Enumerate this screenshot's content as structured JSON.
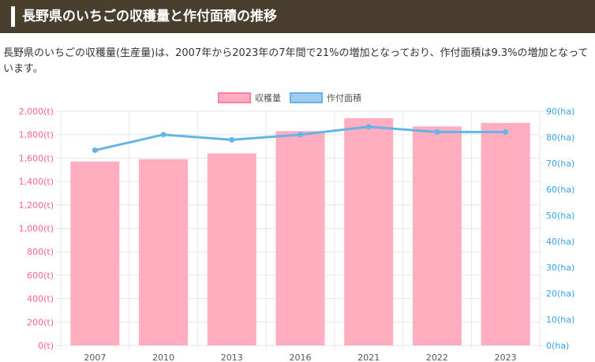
{
  "header": {
    "title": "長野県のいちごの収穫量と作付面積の推移"
  },
  "description": "長野県のいちごの収穫量(生産量)は、2007年から2023年の7年間で21%の増加となっており、作付面積は9.3%の増加となっています。",
  "chart_data": {
    "type": "bar",
    "categories": [
      "2007",
      "2010",
      "2013",
      "2016",
      "2021",
      "2022",
      "2023"
    ],
    "series": [
      {
        "name": "収穫量",
        "type": "bar",
        "axis": "left",
        "color": "#ffadbf",
        "values": [
          1570,
          1590,
          1640,
          1830,
          1940,
          1870,
          1900
        ]
      },
      {
        "name": "作付面積",
        "type": "line",
        "axis": "right",
        "color": "#63b4e8",
        "values": [
          75,
          81,
          79,
          81,
          84,
          82,
          82
        ]
      }
    ],
    "y_left": {
      "min": 0,
      "max": 2000,
      "ticks": [
        "0(t)",
        "200(t)",
        "400(t)",
        "600(t)",
        "800(t)",
        "1,000(t)",
        "1,200(t)",
        "1,400(t)",
        "1,600(t)",
        "1,800(t)",
        "2,000(t)"
      ],
      "color": "#ff6384"
    },
    "y_right": {
      "min": 0,
      "max": 90,
      "ticks": [
        "0(ha)",
        "10(ha)",
        "20(ha)",
        "30(ha)",
        "40(ha)",
        "50(ha)",
        "60(ha)",
        "70(ha)",
        "80(ha)",
        "90(ha)"
      ],
      "color": "#36a2eb"
    },
    "legend_position": "top",
    "grid": true
  }
}
